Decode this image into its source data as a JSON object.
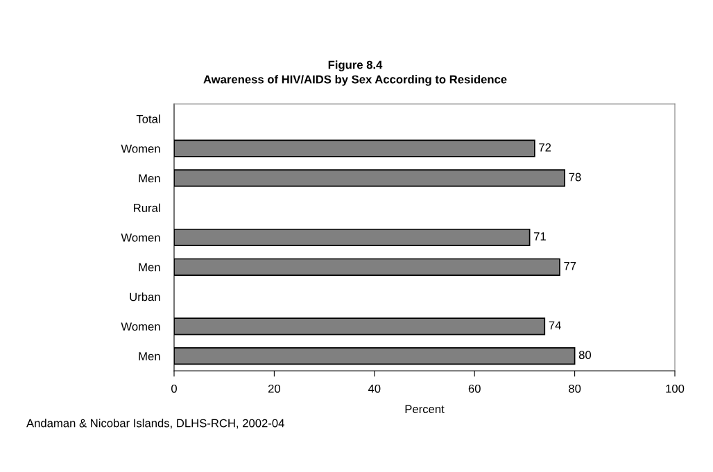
{
  "chart_data": {
    "type": "bar",
    "orientation": "horizontal",
    "title": "Figure 8.4",
    "subtitle": "Awareness of HIV/AIDS by Sex According to Residence",
    "categories": [
      "Total",
      "Women",
      "Men",
      "Rural",
      "Women",
      "Men",
      "Urban",
      "Women",
      "Men"
    ],
    "values": [
      null,
      72,
      78,
      null,
      71,
      77,
      null,
      74,
      80
    ],
    "color": "#808080",
    "xlim": [
      0,
      100
    ],
    "xticks": [
      0,
      20,
      40,
      60,
      80,
      100
    ],
    "xlabel": "Percent",
    "grid": false,
    "data_labels": true,
    "annotations": [
      "Andaman & Nicobar Islands, DLHS-RCH, 2002-04"
    ]
  }
}
